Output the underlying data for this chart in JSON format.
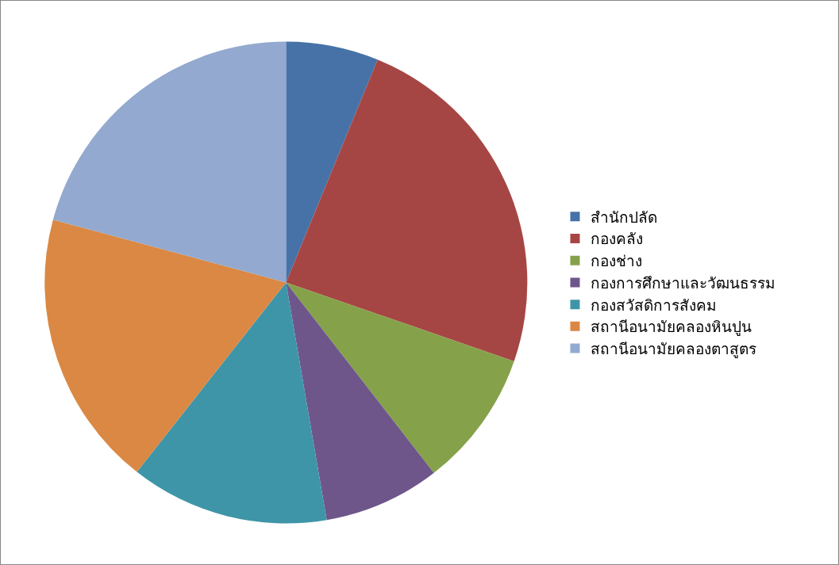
{
  "chart_data": {
    "type": "pie",
    "categories": [
      "สำนักปลัด",
      "กองคลัง",
      "กองช่าง",
      "กองการศึกษาและวัฒนธรรม",
      "กองสวัสดิการสังคม",
      "สถานีอนามัยคลองหินปูน",
      "สถานีอนามัยคลองตาสูตร"
    ],
    "values": [
      6.2,
      24.1,
      9.2,
      7.8,
      13.3,
      18.6,
      20.8
    ],
    "colors": [
      "#4672a8",
      "#a64644",
      "#85a24a",
      "#6e568b",
      "#3f95a8",
      "#da8843",
      "#93a9cf"
    ],
    "legend": "right"
  }
}
